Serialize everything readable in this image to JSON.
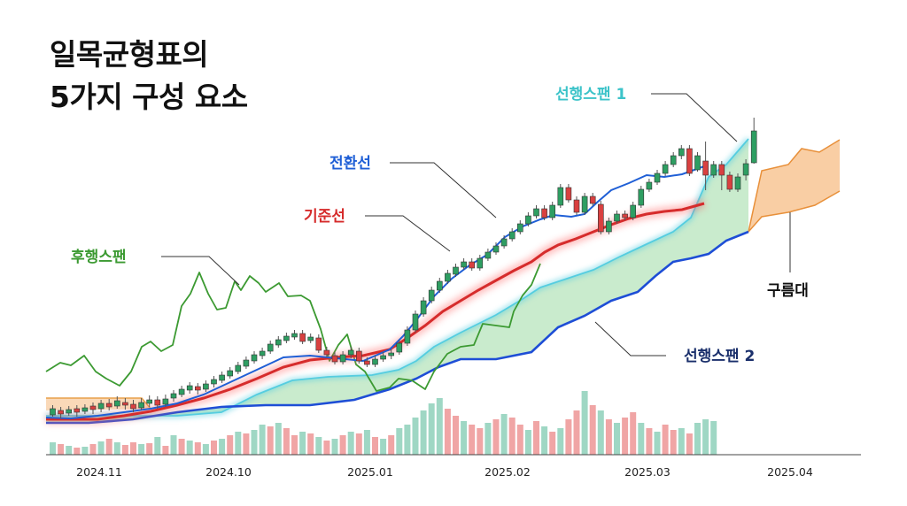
{
  "title": {
    "line1": "일목균형표의",
    "line2": "5가지 구성 요소"
  },
  "chart_data": {
    "type": "line",
    "x_ticks": [
      "2024.11",
      "2024.10",
      "2025.01",
      "2025.02",
      "2025.03",
      "2025.04"
    ],
    "annotations": {
      "senkou_a": "선행스팬 1",
      "tenkan": "전환선",
      "kijun": "기준선",
      "chikou": "후행스팬",
      "cloud": "구름대",
      "senkou_b": "선행스팬 2"
    },
    "colors": {
      "up_candle": "#2e9e62",
      "down_candle": "#d94040",
      "tenkan": "#1f5fd6",
      "kijun": "#d62c2c",
      "chikou": "#3c9a32",
      "senkou_a": "#55cde0",
      "senkou_b": "#1e4ed6",
      "cloud_bull": "#bfe8c4",
      "cloud_bear": "#f8c99a"
    },
    "candles": [
      [
        469,
        462,
        471,
        458
      ],
      [
        464,
        468,
        473,
        460
      ],
      [
        467,
        463,
        470,
        459
      ],
      [
        462,
        466,
        471,
        458
      ],
      [
        465,
        461,
        468,
        457
      ],
      [
        459,
        463,
        468,
        455
      ],
      [
        462,
        456,
        466,
        452
      ],
      [
        456,
        460,
        464,
        451
      ],
      [
        459,
        453,
        462,
        448
      ],
      [
        455,
        458,
        463,
        450
      ],
      [
        457,
        462,
        466,
        452
      ],
      [
        461,
        455,
        464,
        450
      ],
      [
        456,
        452,
        460,
        447
      ],
      [
        452,
        458,
        462,
        448
      ],
      [
        457,
        451,
        460,
        446
      ],
      [
        450,
        445,
        454,
        441
      ],
      [
        446,
        440,
        449,
        436
      ],
      [
        441,
        436,
        445,
        432
      ],
      [
        437,
        441,
        446,
        433
      ],
      [
        440,
        434,
        443,
        430
      ],
      [
        434,
        429,
        438,
        425
      ],
      [
        430,
        424,
        433,
        420
      ],
      [
        425,
        419,
        428,
        415
      ],
      [
        420,
        413,
        423,
        409
      ],
      [
        414,
        407,
        417,
        403
      ],
      [
        408,
        401,
        411,
        397
      ],
      [
        402,
        397,
        406,
        393
      ],
      [
        397,
        389,
        400,
        385
      ],
      [
        390,
        384,
        393,
        380
      ],
      [
        385,
        380,
        388,
        376
      ],
      [
        381,
        377,
        384,
        373
      ],
      [
        377,
        386,
        389,
        373
      ],
      [
        385,
        381,
        388,
        377
      ],
      [
        382,
        396,
        399,
        378
      ],
      [
        396,
        401,
        404,
        392
      ],
      [
        402,
        409,
        412,
        398
      ],
      [
        409,
        401,
        412,
        397
      ],
      [
        401,
        396,
        405,
        392
      ],
      [
        397,
        408,
        411,
        393
      ],
      [
        408,
        412,
        415,
        404
      ],
      [
        412,
        406,
        415,
        402
      ],
      [
        406,
        402,
        409,
        398
      ],
      [
        402,
        399,
        406,
        395
      ],
      [
        398,
        388,
        401,
        384
      ],
      [
        388,
        373,
        391,
        369
      ],
      [
        373,
        355,
        376,
        351
      ],
      [
        355,
        340,
        358,
        336
      ],
      [
        340,
        328,
        343,
        324
      ],
      [
        328,
        318,
        331,
        314
      ],
      [
        318,
        309,
        321,
        305
      ],
      [
        310,
        302,
        313,
        298
      ],
      [
        302,
        296,
        305,
        292
      ],
      [
        296,
        303,
        306,
        292
      ],
      [
        303,
        292,
        306,
        288
      ],
      [
        292,
        285,
        295,
        281
      ],
      [
        285,
        278,
        288,
        274
      ],
      [
        278,
        270,
        281,
        266
      ],
      [
        270,
        262,
        273,
        258
      ],
      [
        262,
        253,
        265,
        249
      ],
      [
        253,
        244,
        256,
        240
      ],
      [
        244,
        236,
        247,
        232
      ],
      [
        236,
        246,
        249,
        232
      ],
      [
        246,
        232,
        249,
        228
      ],
      [
        232,
        212,
        235,
        208
      ],
      [
        212,
        226,
        229,
        208
      ],
      [
        226,
        240,
        243,
        222
      ],
      [
        240,
        222,
        243,
        218
      ],
      [
        222,
        230,
        233,
        218
      ],
      [
        231,
        262,
        265,
        227
      ],
      [
        262,
        250,
        265,
        246
      ],
      [
        250,
        242,
        253,
        238
      ],
      [
        242,
        246,
        249,
        238
      ],
      [
        246,
        232,
        249,
        228
      ],
      [
        232,
        214,
        235,
        210
      ],
      [
        214,
        206,
        217,
        202
      ],
      [
        206,
        196,
        209,
        192
      ],
      [
        196,
        186,
        199,
        182
      ],
      [
        186,
        176,
        189,
        172
      ],
      [
        176,
        168,
        180,
        164
      ],
      [
        168,
        196,
        199,
        164
      ],
      [
        192,
        176,
        194,
        172
      ],
      [
        182,
        198,
        215,
        160
      ],
      [
        198,
        186,
        201,
        182
      ],
      [
        186,
        198,
        215,
        182
      ],
      [
        198,
        214,
        217,
        194
      ],
      [
        214,
        200,
        217,
        196
      ],
      [
        198,
        185,
        204,
        180
      ],
      [
        184,
        148,
        185,
        133
      ]
    ],
    "volume": [
      [
        14,
        0
      ],
      [
        12,
        1
      ],
      [
        10,
        0
      ],
      [
        8,
        1
      ],
      [
        9,
        0
      ],
      [
        12,
        1
      ],
      [
        15,
        0
      ],
      [
        18,
        1
      ],
      [
        14,
        0
      ],
      [
        11,
        1
      ],
      [
        14,
        1
      ],
      [
        12,
        0
      ],
      [
        13,
        1
      ],
      [
        20,
        0
      ],
      [
        10,
        1
      ],
      [
        22,
        0
      ],
      [
        18,
        1
      ],
      [
        16,
        0
      ],
      [
        14,
        1
      ],
      [
        12,
        0
      ],
      [
        16,
        1
      ],
      [
        18,
        0
      ],
      [
        22,
        1
      ],
      [
        26,
        0
      ],
      [
        24,
        1
      ],
      [
        28,
        0
      ],
      [
        34,
        0
      ],
      [
        32,
        1
      ],
      [
        36,
        0
      ],
      [
        30,
        1
      ],
      [
        22,
        1
      ],
      [
        26,
        0
      ],
      [
        24,
        1
      ],
      [
        20,
        0
      ],
      [
        16,
        1
      ],
      [
        18,
        0
      ],
      [
        22,
        1
      ],
      [
        26,
        0
      ],
      [
        24,
        1
      ],
      [
        28,
        0
      ],
      [
        20,
        1
      ],
      [
        18,
        0
      ],
      [
        22,
        1
      ],
      [
        30,
        0
      ],
      [
        34,
        0
      ],
      [
        42,
        0
      ],
      [
        50,
        0
      ],
      [
        58,
        0
      ],
      [
        64,
        0
      ],
      [
        52,
        1
      ],
      [
        44,
        1
      ],
      [
        38,
        0
      ],
      [
        34,
        1
      ],
      [
        30,
        1
      ],
      [
        36,
        0
      ],
      [
        40,
        1
      ],
      [
        46,
        0
      ],
      [
        42,
        1
      ],
      [
        34,
        1
      ],
      [
        28,
        0
      ],
      [
        38,
        1
      ],
      [
        32,
        0
      ],
      [
        26,
        1
      ],
      [
        30,
        0
      ],
      [
        40,
        1
      ],
      [
        50,
        1
      ],
      [
        72,
        0
      ],
      [
        56,
        1
      ],
      [
        50,
        0
      ],
      [
        40,
        1
      ],
      [
        36,
        0
      ],
      [
        42,
        1
      ],
      [
        48,
        1
      ],
      [
        36,
        0
      ],
      [
        30,
        1
      ],
      [
        26,
        0
      ],
      [
        34,
        1
      ],
      [
        28,
        1
      ],
      [
        30,
        0
      ],
      [
        24,
        1
      ],
      [
        36,
        0
      ],
      [
        40,
        0
      ],
      [
        38,
        0
      ]
    ],
    "tenkan": [
      [
        52,
        472
      ],
      [
        80,
        473
      ],
      [
        110,
        470
      ],
      [
        140,
        466
      ],
      [
        170,
        462
      ],
      [
        200,
        456
      ],
      [
        230,
        446
      ],
      [
        260,
        432
      ],
      [
        290,
        418
      ],
      [
        320,
        404
      ],
      [
        350,
        402
      ],
      [
        380,
        405
      ],
      [
        410,
        408
      ],
      [
        440,
        395
      ],
      [
        455,
        380
      ],
      [
        470,
        362
      ],
      [
        490,
        335
      ],
      [
        510,
        315
      ],
      [
        530,
        300
      ],
      [
        550,
        288
      ],
      [
        570,
        268
      ],
      [
        590,
        256
      ],
      [
        610,
        248
      ],
      [
        625,
        243
      ],
      [
        645,
        245
      ],
      [
        660,
        242
      ],
      [
        675,
        228
      ],
      [
        690,
        215
      ],
      [
        710,
        207
      ],
      [
        730,
        198
      ],
      [
        750,
        200
      ],
      [
        770,
        197
      ],
      [
        795,
        188
      ]
    ],
    "kijun": [
      [
        52,
        474
      ],
      [
        80,
        474
      ],
      [
        110,
        474
      ],
      [
        140,
        470
      ],
      [
        170,
        465
      ],
      [
        200,
        458
      ],
      [
        230,
        450
      ],
      [
        260,
        440
      ],
      [
        290,
        428
      ],
      [
        320,
        415
      ],
      [
        350,
        407
      ],
      [
        380,
        404
      ],
      [
        410,
        402
      ],
      [
        440,
        395
      ],
      [
        460,
        382
      ],
      [
        480,
        368
      ],
      [
        500,
        352
      ],
      [
        520,
        340
      ],
      [
        540,
        328
      ],
      [
        560,
        317
      ],
      [
        580,
        306
      ],
      [
        600,
        296
      ],
      [
        615,
        285
      ],
      [
        630,
        277
      ],
      [
        650,
        270
      ],
      [
        670,
        262
      ],
      [
        690,
        254
      ],
      [
        710,
        247
      ],
      [
        730,
        242
      ],
      [
        750,
        239
      ],
      [
        770,
        237
      ],
      [
        795,
        230
      ]
    ],
    "chikou": [
      [
        52,
        420
      ],
      [
        68,
        410
      ],
      [
        80,
        413
      ],
      [
        95,
        402
      ],
      [
        108,
        420
      ],
      [
        120,
        428
      ],
      [
        135,
        436
      ],
      [
        148,
        420
      ],
      [
        160,
        392
      ],
      [
        170,
        386
      ],
      [
        182,
        397
      ],
      [
        195,
        390
      ],
      [
        205,
        346
      ],
      [
        215,
        332
      ],
      [
        225,
        308
      ],
      [
        235,
        332
      ],
      [
        245,
        350
      ],
      [
        255,
        348
      ],
      [
        265,
        318
      ],
      [
        272,
        328
      ],
      [
        282,
        312
      ],
      [
        292,
        320
      ],
      [
        300,
        330
      ],
      [
        315,
        320
      ],
      [
        325,
        335
      ],
      [
        340,
        334
      ],
      [
        350,
        340
      ],
      [
        362,
        372
      ],
      [
        372,
        408
      ],
      [
        382,
        390
      ],
      [
        392,
        378
      ],
      [
        402,
        412
      ],
      [
        412,
        420
      ],
      [
        425,
        442
      ],
      [
        440,
        438
      ],
      [
        450,
        428
      ],
      [
        465,
        430
      ],
      [
        480,
        440
      ],
      [
        490,
        420
      ],
      [
        505,
        400
      ],
      [
        520,
        392
      ],
      [
        535,
        390
      ],
      [
        545,
        366
      ],
      [
        560,
        368
      ],
      [
        575,
        370
      ],
      [
        580,
        352
      ],
      [
        590,
        334
      ],
      [
        600,
        322
      ],
      [
        610,
        298
      ]
    ],
    "senkou_a": [
      [
        52,
        470
      ],
      [
        100,
        470
      ],
      [
        150,
        470
      ],
      [
        200,
        470
      ],
      [
        250,
        466
      ],
      [
        290,
        446
      ],
      [
        330,
        430
      ],
      [
        370,
        426
      ],
      [
        420,
        424
      ],
      [
        450,
        418
      ],
      [
        470,
        408
      ],
      [
        490,
        392
      ],
      [
        520,
        376
      ],
      [
        560,
        356
      ],
      [
        590,
        338
      ],
      [
        610,
        325
      ],
      [
        640,
        315
      ],
      [
        670,
        305
      ],
      [
        700,
        290
      ],
      [
        730,
        276
      ],
      [
        760,
        262
      ],
      [
        780,
        246
      ],
      [
        800,
        200
      ],
      [
        820,
        186
      ],
      [
        845,
        157
      ]
    ],
    "senkou_b": [
      [
        52,
        478
      ],
      [
        100,
        478
      ],
      [
        150,
        474
      ],
      [
        200,
        466
      ],
      [
        250,
        460
      ],
      [
        300,
        458
      ],
      [
        350,
        458
      ],
      [
        400,
        452
      ],
      [
        440,
        440
      ],
      [
        470,
        428
      ],
      [
        495,
        415
      ],
      [
        520,
        406
      ],
      [
        560,
        406
      ],
      [
        600,
        398
      ],
      [
        630,
        370
      ],
      [
        660,
        357
      ],
      [
        690,
        340
      ],
      [
        720,
        330
      ],
      [
        740,
        312
      ],
      [
        760,
        296
      ],
      [
        780,
        292
      ],
      [
        800,
        287
      ],
      [
        820,
        272
      ],
      [
        845,
        262
      ]
    ],
    "future_a": [
      [
        845,
        262
      ],
      [
        860,
        193
      ],
      [
        890,
        186
      ],
      [
        905,
        168
      ],
      [
        925,
        172
      ],
      [
        948,
        158
      ]
    ],
    "future_b": [
      [
        845,
        262
      ],
      [
        860,
        245
      ],
      [
        890,
        240
      ],
      [
        920,
        232
      ],
      [
        948,
        216
      ]
    ]
  }
}
